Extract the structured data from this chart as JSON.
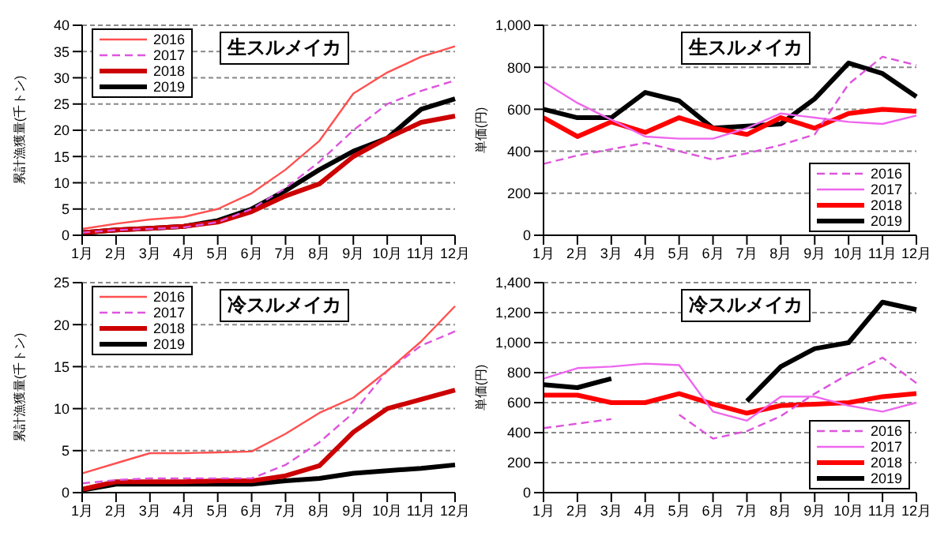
{
  "chart_data": [
    {
      "type": "line",
      "title": "生スルメイカ",
      "ylabel": "累計漁獲量(千トン)",
      "categories": [
        "1月",
        "2月",
        "3月",
        "4月",
        "5月",
        "6月",
        "7月",
        "8月",
        "9月",
        "10月",
        "11月",
        "12月"
      ],
      "ylim": [
        0,
        40
      ],
      "yticks": [
        0,
        5,
        10,
        15,
        20,
        25,
        30,
        35,
        40
      ],
      "grid": "y",
      "legend": "top left",
      "marker": "none",
      "series": [
        {
          "name": "2016",
          "color": "#ff5050",
          "line_style": "solid",
          "values": [
            1.2,
            2.2,
            3,
            3.5,
            5,
            8,
            12.5,
            18,
            27,
            31,
            34,
            36
          ]
        },
        {
          "name": "2017",
          "color": "#dd55dd",
          "line_style": "dashed",
          "values": [
            0.5,
            1,
            1.2,
            1.5,
            2.5,
            5,
            9,
            14,
            20,
            25,
            27.5,
            29.5
          ]
        },
        {
          "name": "2018",
          "color": "#cc0000",
          "line_style": "solid",
          "values": [
            0.5,
            1,
            1.3,
            1.7,
            2.5,
            4.5,
            7.5,
            9.8,
            15,
            18.5,
            21.5,
            22.7
          ]
        },
        {
          "name": "2019",
          "color": "#000000",
          "line_style": "solid",
          "values": [
            0.5,
            1,
            1.3,
            1.7,
            2.8,
            5,
            8.5,
            12.5,
            16,
            18.5,
            24,
            26
          ]
        }
      ]
    },
    {
      "type": "line",
      "title": "生スルメイカ",
      "ylabel": "単価(円)",
      "categories": [
        "1月",
        "2月",
        "3月",
        "4月",
        "5月",
        "6月",
        "7月",
        "8月",
        "9月",
        "10月",
        "11月",
        "12月"
      ],
      "ylim": [
        0,
        1000
      ],
      "yticks": [
        0,
        200,
        400,
        600,
        800,
        {
          "value": 1000,
          "label": "1,000"
        }
      ],
      "grid": "y",
      "legend": "bottom right",
      "marker": "none",
      "series": [
        {
          "name": "2016",
          "color": "#dd55dd",
          "line_style": "dashed",
          "values": [
            340,
            380,
            410,
            440,
            400,
            360,
            390,
            430,
            480,
            720,
            850,
            810
          ]
        },
        {
          "name": "2017",
          "color": "#ee66ee",
          "line_style": "solid",
          "values": [
            730,
            630,
            550,
            470,
            460,
            460,
            510,
            580,
            560,
            540,
            530,
            570
          ]
        },
        {
          "name": "2018",
          "color": "#ff0000",
          "line_style": "solid",
          "values": [
            560,
            470,
            540,
            490,
            560,
            510,
            480,
            560,
            510,
            580,
            600,
            590
          ]
        },
        {
          "name": "2019",
          "color": "#000000",
          "line_style": "solid",
          "values": [
            600,
            560,
            560,
            680,
            640,
            510,
            520,
            530,
            650,
            820,
            770,
            660
          ]
        }
      ]
    },
    {
      "type": "line",
      "title": "冷スルメイカ",
      "ylabel": "累計漁獲量(千トン)",
      "categories": [
        "1月",
        "2月",
        "3月",
        "4月",
        "5月",
        "6月",
        "7月",
        "8月",
        "9月",
        "10月",
        "11月",
        "12月"
      ],
      "ylim": [
        0,
        25
      ],
      "yticks": [
        0,
        5,
        10,
        15,
        20,
        25
      ],
      "grid": "y",
      "legend": "top left",
      "marker": "none",
      "series": [
        {
          "name": "2016",
          "color": "#ff5050",
          "line_style": "solid",
          "values": [
            2.3,
            3.5,
            4.7,
            4.7,
            4.8,
            4.9,
            7,
            9.5,
            11.3,
            14.5,
            18,
            22.2
          ]
        },
        {
          "name": "2017",
          "color": "#dd55dd",
          "line_style": "dashed",
          "values": [
            1.1,
            1.5,
            1.7,
            1.7,
            1.7,
            1.7,
            3.3,
            6,
            9.5,
            14.5,
            17.5,
            19.2
          ]
        },
        {
          "name": "2018",
          "color": "#cc0000",
          "line_style": "solid",
          "values": [
            0.4,
            1.3,
            1.3,
            1.3,
            1.4,
            1.4,
            2,
            3.2,
            7.2,
            10,
            11.1,
            12.2
          ]
        },
        {
          "name": "2019",
          "color": "#000000",
          "line_style": "solid",
          "values": [
            0.3,
            1,
            1,
            1,
            1,
            1,
            1.4,
            1.7,
            2.3,
            2.6,
            2.9,
            3.3
          ]
        }
      ]
    },
    {
      "type": "line",
      "title": "冷スルメイカ",
      "ylabel": "単価(円)",
      "categories": [
        "1月",
        "2月",
        "3月",
        "4月",
        "5月",
        "6月",
        "7月",
        "8月",
        "9月",
        "10月",
        "11月",
        "12月"
      ],
      "ylim": [
        0,
        1400
      ],
      "yticks": [
        0,
        200,
        400,
        600,
        800,
        {
          "value": 1000,
          "label": "1,000"
        },
        {
          "value": 1200,
          "label": "1,200"
        },
        {
          "value": 1400,
          "label": "1,400"
        }
      ],
      "grid": "y",
      "legend": "bottom right",
      "marker": "none",
      "series": [
        {
          "name": "2016",
          "color": "#dd55dd",
          "line_style": "dashed",
          "values": [
            430,
            460,
            490,
            null,
            520,
            360,
            410,
            510,
            660,
            790,
            900,
            730
          ]
        },
        {
          "name": "2017",
          "color": "#ee66ee",
          "line_style": "solid",
          "values": [
            760,
            830,
            840,
            860,
            850,
            540,
            480,
            640,
            640,
            580,
            540,
            600
          ]
        },
        {
          "name": "2018",
          "color": "#ff0000",
          "line_style": "solid",
          "values": [
            650,
            650,
            600,
            600,
            660,
            590,
            530,
            580,
            590,
            600,
            640,
            660
          ]
        },
        {
          "name": "2019",
          "color": "#000000",
          "line_style": "solid",
          "values": [
            720,
            700,
            760,
            null,
            null,
            null,
            610,
            840,
            960,
            1000,
            1270,
            1220
          ]
        }
      ]
    }
  ]
}
